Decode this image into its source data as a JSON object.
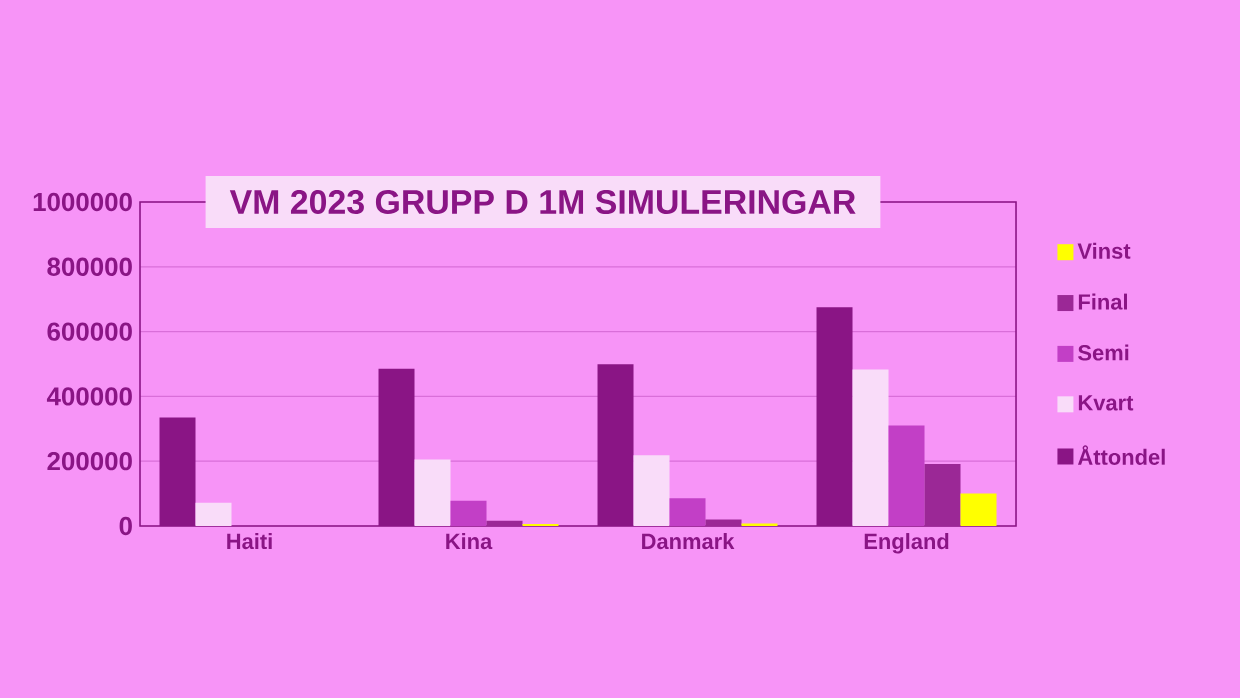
{
  "chart_data": {
    "type": "bar",
    "title": "VM 2023 GRUPP D 1M SIMULERINGAR",
    "categories": [
      "Haiti",
      "Kina",
      "Danmark",
      "England"
    ],
    "series": [
      {
        "name": "Åttondel",
        "color": "#8a1585",
        "values": [
          335000,
          485000,
          499000,
          675000
        ]
      },
      {
        "name": "Kvart",
        "color": "#f9dcf9",
        "values": [
          72000,
          205000,
          218000,
          483000
        ]
      },
      {
        "name": "Semi",
        "color": "#c23fc6",
        "values": [
          null,
          78000,
          86000,
          310000
        ]
      },
      {
        "name": "Final",
        "color": "#9b2896",
        "values": [
          0,
          16000,
          20000,
          191000
        ]
      },
      {
        "name": "Vinst",
        "color": "#ffff00",
        "values": [
          0,
          6000,
          8000,
          100000
        ]
      }
    ],
    "ylim": [
      0,
      1000000
    ],
    "yticks": [
      0,
      200000,
      400000,
      600000,
      800000,
      1000000
    ],
    "grid": "y",
    "legend": "right"
  }
}
